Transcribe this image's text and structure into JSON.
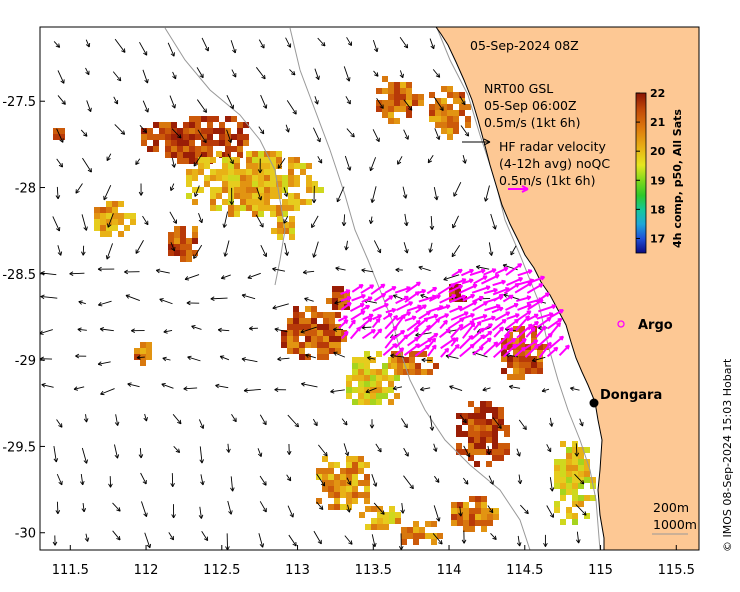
{
  "map": {
    "date_label": "05-Sep-2024 08Z",
    "lon_ticks": [
      "111.5",
      "112",
      "112.5",
      "113",
      "113.5",
      "114",
      "114.5",
      "115",
      "115.5"
    ],
    "lat_ticks": [
      "-27.5",
      "-28",
      "-28.5",
      "-29",
      "-29.5",
      "-30"
    ],
    "lon_range": [
      111.3,
      115.65
    ],
    "lat_range": [
      -30.1,
      -27.07
    ],
    "land_color": "#fdc894",
    "current_legend": {
      "source": "NRT00 GSL",
      "time": "05-Sep 06:00Z",
      "scale": "0.5m/s (1kt 6h)"
    },
    "radar_legend": {
      "line1": "HF radar velocity",
      "line2": "(4-12h avg) noQC",
      "scale": "0.5m/s (1kt 6h)",
      "color": "#ff00ff"
    },
    "places": [
      {
        "name": "Argo",
        "marker": "circle-open",
        "color": "#ff00ff"
      },
      {
        "name": "Dongara",
        "marker": "dot",
        "color": "#000000"
      }
    ],
    "contours": [
      "200m",
      "1000m"
    ],
    "credit": "© IMOS 08-Sep-2024 15:03 Hobart"
  },
  "colorbar": {
    "title": "4h comp, p50, All Sats",
    "ticks": [
      "17",
      "18",
      "19",
      "20",
      "21",
      "22"
    ],
    "range": [
      16.5,
      22
    ]
  }
}
